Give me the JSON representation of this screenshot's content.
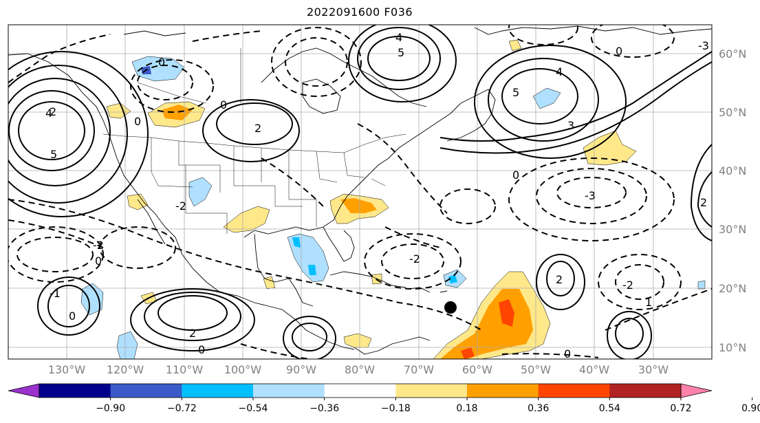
{
  "title": "2022091600 F036",
  "lon_labels": [
    "130°W",
    "120°W",
    "110°W",
    "100°W",
    "90°W",
    "80°W",
    "70°W",
    "60°W",
    "50°W",
    "40°W",
    "30°W"
  ],
  "lat_labels": [
    "60°N",
    "50°N",
    "40°N",
    "30°N",
    "20°N",
    "10°N"
  ],
  "contour_labels": [
    "0",
    "2",
    "3",
    "4",
    "5",
    "1",
    "-1",
    "-2",
    "-3",
    "4",
    "5",
    "3",
    "2",
    "1",
    "0",
    "-2",
    "0"
  ],
  "colorbar": {
    "tick_labels": [
      "−0.90",
      "−0.72",
      "−0.54",
      "−0.36",
      "−0.18",
      "0.18",
      "0.36",
      "0.54",
      "0.72",
      "0.90"
    ],
    "colors": [
      "#9a32cd",
      "#00008b",
      "#3a5bc7",
      "#00bfff",
      "#afe0ff",
      "#ffffff",
      "#ffe88a",
      "#ffa000",
      "#ff4500",
      "#b22222",
      "#ff82ab"
    ],
    "extend": "both"
  },
  "marker": "storm-center-marker"
}
